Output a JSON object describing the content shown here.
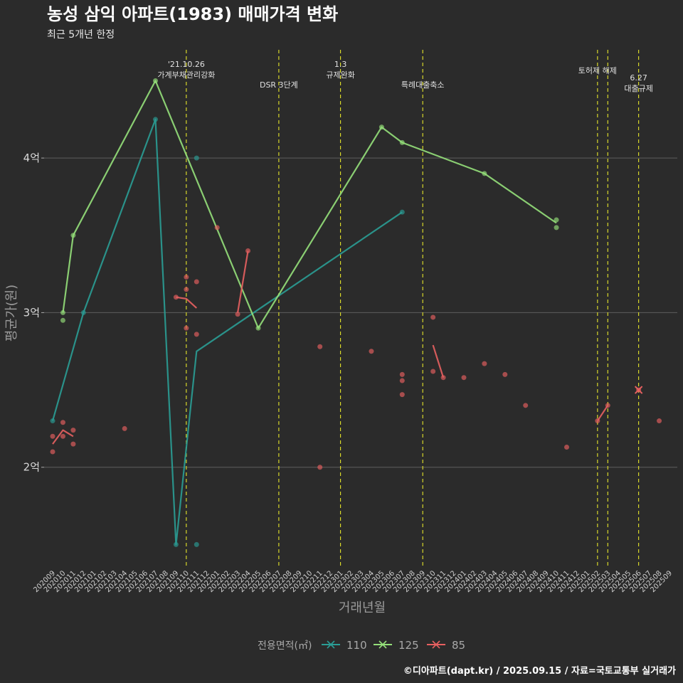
{
  "chart_data": {
    "type": "line",
    "title": "농성 삼익 아파트(1983) 매매가격 변화",
    "subtitle": "최근 5개년 한정",
    "xlabel": "거래년월",
    "ylabel": "평균가(원)",
    "caption": "©디아파트(dapt.kr) / 2025.09.15 / 자료=국토교통부 실거래가",
    "legend": {
      "title": "전용면적(㎡)",
      "position": "bottom"
    },
    "y_unit": "억",
    "ylim": [
      1.35,
      4.7
    ],
    "y_ticks": [
      {
        "value": 2,
        "label": "2억"
      },
      {
        "value": 3,
        "label": "3억"
      },
      {
        "value": 4,
        "label": "4억"
      }
    ],
    "x_categories": [
      "202009",
      "202010",
      "202011",
      "202012",
      "202101",
      "202102",
      "202103",
      "202104",
      "202105",
      "202106",
      "202107",
      "202108",
      "202109",
      "202110",
      "202111",
      "202112",
      "202201",
      "202202",
      "202203",
      "202204",
      "202205",
      "202206",
      "202207",
      "202208",
      "202209",
      "202210",
      "202211",
      "202212",
      "202301",
      "202302",
      "202303",
      "202304",
      "202305",
      "202306",
      "202307",
      "202308",
      "202309",
      "202310",
      "202311",
      "202312",
      "202401",
      "202402",
      "202403",
      "202404",
      "202405",
      "202406",
      "202407",
      "202408",
      "202409",
      "202410",
      "202411",
      "202412",
      "202501",
      "202502",
      "202503",
      "202504",
      "202505",
      "202506",
      "202507",
      "202508",
      "202509"
    ],
    "events": [
      {
        "x": "202110",
        "lines": [
          "'21.10.26",
          "가계부채관리강화"
        ]
      },
      {
        "x": "202207",
        "lines": [
          "DSR 3단계"
        ]
      },
      {
        "x": "202301",
        "lines": [
          "1.3",
          "규제완화"
        ]
      },
      {
        "x": "202309",
        "lines": [
          "특례대출축소"
        ]
      },
      {
        "x": "202502",
        "lines": [
          "토허제 해제"
        ]
      },
      {
        "x": "202503",
        "lines": []
      },
      {
        "x": "202506",
        "lines": [
          "6.27",
          "대출규제"
        ]
      }
    ],
    "series": [
      {
        "name": "110",
        "color": "#2a9d95",
        "line": [
          [
            "202009",
            2.3
          ],
          [
            "202012",
            3.0
          ],
          [
            "202107",
            4.25
          ],
          [
            "202109",
            1.5
          ],
          [
            "202111",
            2.75
          ],
          [
            "202307",
            3.65
          ]
        ],
        "points": [
          [
            "202009",
            2.3
          ],
          [
            "202012",
            3.0
          ],
          [
            "202107",
            4.25
          ],
          [
            "202109",
            1.5
          ],
          [
            "202111",
            4.0
          ],
          [
            "202111",
            1.5
          ],
          [
            "202307",
            3.65
          ]
        ]
      },
      {
        "name": "125",
        "color": "#95e07a",
        "line": [
          [
            "202010",
            3.0
          ],
          [
            "202011",
            3.5
          ],
          [
            "202107",
            4.5
          ],
          [
            "202205",
            2.9
          ],
          [
            "202305",
            4.2
          ],
          [
            "202307",
            4.1
          ],
          [
            "202403",
            3.9
          ],
          [
            "202410",
            3.58
          ]
        ],
        "points": [
          [
            "202010",
            3.0
          ],
          [
            "202010",
            2.95
          ],
          [
            "202011",
            3.5
          ],
          [
            "202107",
            4.5
          ],
          [
            "202205",
            2.9
          ],
          [
            "202305",
            4.2
          ],
          [
            "202307",
            4.1
          ],
          [
            "202403",
            3.9
          ],
          [
            "202410",
            3.6
          ],
          [
            "202410",
            3.55
          ]
        ]
      },
      {
        "name": "85",
        "color": "#e86060",
        "line_segments": [
          [
            [
              "202009",
              2.15
            ],
            [
              "202010",
              2.24
            ],
            [
              "202011",
              2.2
            ]
          ],
          [
            [
              "202109",
              3.1
            ],
            [
              "202110",
              3.09
            ],
            [
              "202111",
              3.03
            ]
          ],
          [
            [
              "202203",
              3.0
            ],
            [
              "202204",
              3.4
            ]
          ],
          [
            [
              "202310",
              2.79
            ],
            [
              "202311",
              2.58
            ]
          ],
          [
            [
              "202502",
              2.3
            ],
            [
              "202503",
              2.4
            ]
          ]
        ],
        "points": [
          [
            "202009",
            2.1
          ],
          [
            "202009",
            2.2
          ],
          [
            "202010",
            2.29
          ],
          [
            "202010",
            2.2
          ],
          [
            "202011",
            2.24
          ],
          [
            "202011",
            2.15
          ],
          [
            "202104",
            2.25
          ],
          [
            "202109",
            3.1
          ],
          [
            "202110",
            3.23
          ],
          [
            "202110",
            3.15
          ],
          [
            "202110",
            2.9
          ],
          [
            "202111",
            3.2
          ],
          [
            "202111",
            2.86
          ],
          [
            "202201",
            3.55
          ],
          [
            "202203",
            2.99
          ],
          [
            "202204",
            3.4
          ],
          [
            "202211",
            2.78
          ],
          [
            "202211",
            2.0
          ],
          [
            "202304",
            2.75
          ],
          [
            "202307",
            2.6
          ],
          [
            "202307",
            2.56
          ],
          [
            "202307",
            2.47
          ],
          [
            "202310",
            2.97
          ],
          [
            "202310",
            2.62
          ],
          [
            "202311",
            2.58
          ],
          [
            "202401",
            2.58
          ],
          [
            "202403",
            2.67
          ],
          [
            "202405",
            2.6
          ],
          [
            "202407",
            2.4
          ],
          [
            "202411",
            2.13
          ],
          [
            "202502",
            2.3
          ],
          [
            "202503",
            2.4
          ],
          [
            "202506",
            2.5
          ],
          [
            "202508",
            2.3
          ]
        ],
        "x_markers": [
          [
            "202506",
            2.5
          ]
        ]
      }
    ]
  }
}
